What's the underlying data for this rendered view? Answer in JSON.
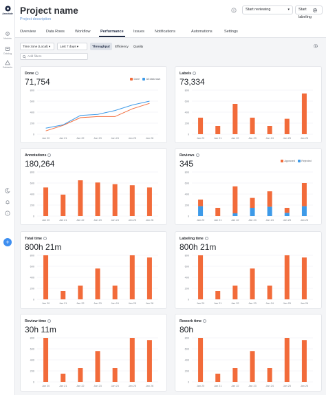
{
  "colors": {
    "orange": "#f26b3a",
    "blue": "#3d9ae8",
    "grid": "#eceef1",
    "active": "#1f2a44"
  },
  "sidebar": {
    "items": [
      {
        "label": "Annotate",
        "icon": "logo-icon"
      },
      {
        "label": "Models",
        "icon": "gear-icon"
      },
      {
        "label": "Catalog",
        "icon": "catalog-icon"
      },
      {
        "label": "Datasets",
        "icon": "warning-icon"
      }
    ],
    "bottom_icons": [
      "moon-icon",
      "bell-icon",
      "help-icon"
    ],
    "fab_label": "+"
  },
  "header": {
    "title": "Project name",
    "subtitle": "Project description",
    "start_reviewing": "Start reviewing",
    "start_labeling": "Start labeling",
    "tabs": [
      "Overview",
      "Data Rows",
      "Workflow",
      "Performance",
      "Issues",
      "Notifications",
      "Automations",
      "Settings"
    ],
    "active_tab": "Performance"
  },
  "toolbar": {
    "timezone": "Time zone (Local)",
    "range": "Last 7 days",
    "segments": [
      "Throughput",
      "Efficiency",
      "Quality"
    ],
    "active_segment": "Throughput",
    "filter_placeholder": "Add filters"
  },
  "cards": [
    {
      "title": "Done",
      "value": "71,754"
    },
    {
      "title": "Labels",
      "value": "73,334"
    },
    {
      "title": "Annotations",
      "value": "180,264"
    },
    {
      "title": "Reviews",
      "value": "345"
    },
    {
      "title": "Total time",
      "value": "800h 21m"
    },
    {
      "title": "Labeling time",
      "value": "800h 21m"
    },
    {
      "title": "Review time",
      "value": "30h 11m"
    },
    {
      "title": "Rework time",
      "value": "80h"
    }
  ],
  "chart_data": [
    {
      "type": "line",
      "x": [
        "Jan 20",
        "Jan 21",
        "Jan 22",
        "Jan 23",
        "Jan 24",
        "Jan 25",
        "Jan 26"
      ],
      "ylim": [
        0,
        800
      ],
      "yticks": [
        0,
        200,
        400,
        600,
        800
      ],
      "series": [
        {
          "name": "Done",
          "color": "#f26b3a",
          "values": [
            60,
            160,
            300,
            320,
            320,
            460,
            560
          ]
        },
        {
          "name": "All data rows",
          "color": "#3d9ae8",
          "values": [
            110,
            170,
            340,
            360,
            430,
            530,
            600
          ]
        }
      ]
    },
    {
      "type": "bar",
      "x": [
        "Jan 20",
        "Jan 21",
        "Jan 22",
        "Jan 23",
        "Jan 24",
        "Jan 25",
        "Jan 26"
      ],
      "ylim": [
        0,
        800
      ],
      "yticks": [
        0,
        200,
        400,
        600,
        800
      ],
      "series": [
        {
          "color": "#f26b3a",
          "values": [
            300,
            150,
            550,
            300,
            150,
            280,
            740
          ]
        }
      ]
    },
    {
      "type": "bar",
      "x": [
        "Jan 20",
        "Jan 21",
        "Jan 22",
        "Jan 23",
        "Jan 24",
        "Jan 25",
        "Jan 26"
      ],
      "ylim": [
        0,
        800
      ],
      "yticks": [
        0,
        200,
        400,
        600,
        800
      ],
      "series": [
        {
          "color": "#f26b3a",
          "values": [
            520,
            390,
            650,
            610,
            580,
            560,
            520
          ]
        }
      ]
    },
    {
      "type": "bar-stacked",
      "x": [
        "Jan 20",
        "Jan 21",
        "Jan 22",
        "Jan 23",
        "Jan 24",
        "Jan 25",
        "Jan 26"
      ],
      "ylim": [
        0,
        800
      ],
      "yticks": [
        0,
        200,
        400,
        600,
        800
      ],
      "series": [
        {
          "name": "Approved",
          "color": "#f26b3a",
          "values": [
            120,
            150,
            490,
            180,
            280,
            90,
            420
          ]
        },
        {
          "name": "Rejected",
          "color": "#3d9ae8",
          "values": [
            180,
            0,
            50,
            150,
            170,
            60,
            180
          ]
        }
      ]
    },
    {
      "type": "bar",
      "x": [
        "Jan 20",
        "Jan 21",
        "Jan 22",
        "Jan 23",
        "Jan 24",
        "Jan 25",
        "Jan 26"
      ],
      "ylim": [
        0,
        800
      ],
      "yticks": [
        0,
        200,
        400,
        600,
        800
      ],
      "series": [
        {
          "color": "#f26b3a",
          "values": [
            800,
            150,
            250,
            560,
            250,
            800,
            760
          ]
        }
      ]
    },
    {
      "type": "bar",
      "x": [
        "Jan 20",
        "Jan 21",
        "Jan 22",
        "Jan 23",
        "Jan 24",
        "Jan 25",
        "Jan 26"
      ],
      "ylim": [
        0,
        800
      ],
      "yticks": [
        0,
        200,
        400,
        600,
        800
      ],
      "series": [
        {
          "color": "#f26b3a",
          "values": [
            800,
            150,
            250,
            560,
            250,
            800,
            760
          ]
        }
      ]
    },
    {
      "type": "bar",
      "x": [
        "Jan 20",
        "Jan 21",
        "Jan 22",
        "Jan 23",
        "Jan 24",
        "Jan 25",
        "Jan 26"
      ],
      "ylim": [
        0,
        800
      ],
      "yticks": [
        0,
        200,
        400,
        600,
        800
      ],
      "series": [
        {
          "color": "#f26b3a",
          "values": [
            800,
            150,
            250,
            560,
            250,
            800,
            760
          ]
        }
      ]
    },
    {
      "type": "bar",
      "x": [
        "Jan 20",
        "Jan 21",
        "Jan 22",
        "Jan 23",
        "Jan 24",
        "Jan 25",
        "Jan 26"
      ],
      "ylim": [
        0,
        800
      ],
      "yticks": [
        0,
        200,
        400,
        600,
        800
      ],
      "series": [
        {
          "color": "#f26b3a",
          "values": [
            800,
            150,
            250,
            560,
            250,
            800,
            760
          ]
        }
      ]
    }
  ]
}
